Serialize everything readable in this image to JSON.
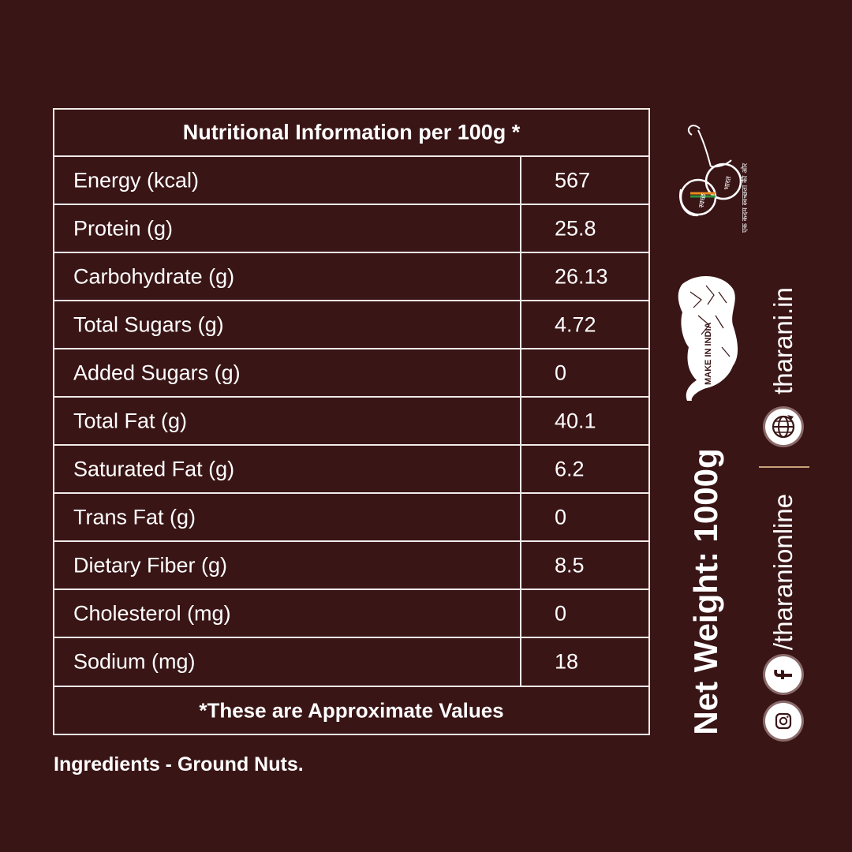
{
  "table": {
    "title": "Nutritional Information per 100g *",
    "rows": [
      {
        "label": "Energy (kcal)",
        "value": "567"
      },
      {
        "label": "Protein (g)",
        "value": "25.8"
      },
      {
        "label": "Carbohydrate (g)",
        "value": "26.13"
      },
      {
        "label": "Total Sugars (g)",
        "value": "4.72"
      },
      {
        "label": "Added Sugars (g)",
        "value": "0"
      },
      {
        "label": "Total Fat (g)",
        "value": "40.1"
      },
      {
        "label": "Saturated Fat (g)",
        "value": "6.2"
      },
      {
        "label": "Trans Fat (g)",
        "value": "0"
      },
      {
        "label": "Dietary Fiber (g)",
        "value": "8.5"
      },
      {
        "label": "Cholesterol (mg)",
        "value": "0"
      },
      {
        "label": "Sodium (mg)",
        "value": "18"
      }
    ],
    "footnote": "*These are Approximate Values"
  },
  "ingredients": "Ingredients - Ground Nuts.",
  "net_weight": "Net Weight: 1000g",
  "website": "tharani.in",
  "social_handle": "/tharanionline",
  "logos": {
    "swachh": "स्वच्छ भारत एक कदम स्वच्छता की ओर",
    "make_in_india": "MAKE IN INDIA"
  },
  "icons": [
    "globe-icon",
    "facebook-icon",
    "instagram-icon"
  ],
  "colors": {
    "background": "#3a1516",
    "text": "#ffffff",
    "accent": "#c8a27a"
  }
}
